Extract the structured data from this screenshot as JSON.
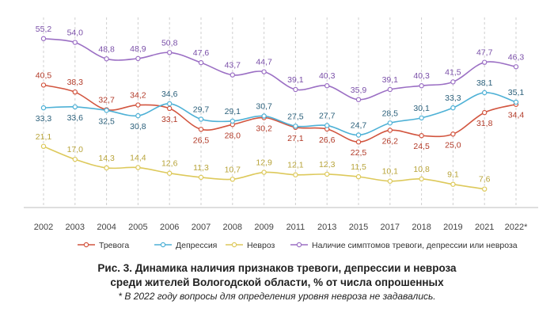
{
  "chart_data": {
    "type": "line",
    "categories": [
      "2002",
      "2003",
      "2004",
      "2005",
      "2006",
      "2007",
      "2008",
      "2009",
      "2011",
      "2013",
      "2015",
      "2017",
      "2018",
      "2019",
      "2021",
      "2022*"
    ],
    "ylim": [
      0,
      60
    ],
    "grid": "vertical-dashed",
    "legend_position": "bottom",
    "series": [
      {
        "name": "Наличие симптомов тревоги, депрессии или невроза",
        "color": "#9b6fc4",
        "values": [
          55.2,
          54.0,
          48.8,
          48.9,
          50.8,
          47.6,
          43.7,
          44.7,
          39.1,
          40.3,
          35.9,
          39.1,
          40.3,
          41.5,
          47.7,
          46.3
        ],
        "labels": [
          "55,2",
          "54,0",
          "48,8",
          "48,9",
          "50,8",
          "47,6",
          "43,7",
          "44,7",
          "39,1",
          "40,3",
          "35,9",
          "39,1",
          "40,3",
          "41,5",
          "47,7",
          "46,3"
        ]
      },
      {
        "name": "Тревога",
        "color": "#d2553f",
        "values": [
          40.5,
          38.3,
          32.7,
          34.2,
          33.1,
          26.5,
          28.0,
          30.2,
          27.1,
          26.6,
          22.5,
          26.2,
          24.5,
          25.0,
          31.8,
          34.4
        ],
        "labels": [
          "40,5",
          "38,3",
          "32,7",
          "34,2",
          "33,1",
          "26,5",
          "28,0",
          "30,2",
          "27,1",
          "26,6",
          "22,5",
          "26,2",
          "24,5",
          "25,0",
          "31,8",
          "34,4"
        ]
      },
      {
        "name": "Депрессия",
        "color": "#4eb1d6",
        "values": [
          33.3,
          33.6,
          32.5,
          30.8,
          34.6,
          29.7,
          29.1,
          30.7,
          27.5,
          27.7,
          24.7,
          28.5,
          30.1,
          33.3,
          38.1,
          35.1
        ],
        "labels": [
          "33,3",
          "33,6",
          "32,5",
          "30,8",
          "34,6",
          "29,7",
          "29,1",
          "30,7",
          "27,5",
          "27,7",
          "24,7",
          "28,5",
          "30,1",
          "33,3",
          "38,1",
          "35,1"
        ]
      },
      {
        "name": "Невроз",
        "color": "#ddc95b",
        "values": [
          21.1,
          17.0,
          14.3,
          14.4,
          12.6,
          11.3,
          10.7,
          12.9,
          12.1,
          12.3,
          11.5,
          10.1,
          10.8,
          9.1,
          7.6,
          null
        ],
        "labels": [
          "21,1",
          "17,0",
          "14,3",
          "14,4",
          "12,6",
          "11,3",
          "10,7",
          "12,9",
          "12,1",
          "12,3",
          "11,5",
          "10,1",
          "10,8",
          "9,1",
          "7,6",
          ""
        ]
      }
    ],
    "legend_order": [
      "Тревога",
      "Депрессия",
      "Невроз",
      "Наличие симптомов тревоги, депрессии или невроза"
    ]
  },
  "caption": {
    "line1": "Рис. 3. Динамика наличия признаков тревоги, депрессии и невроза",
    "line2": "среди жителей Вологодской области, % от числа опрошенных",
    "footnote": "* В 2022 году вопросы для определения уровня невроза не задавались."
  }
}
